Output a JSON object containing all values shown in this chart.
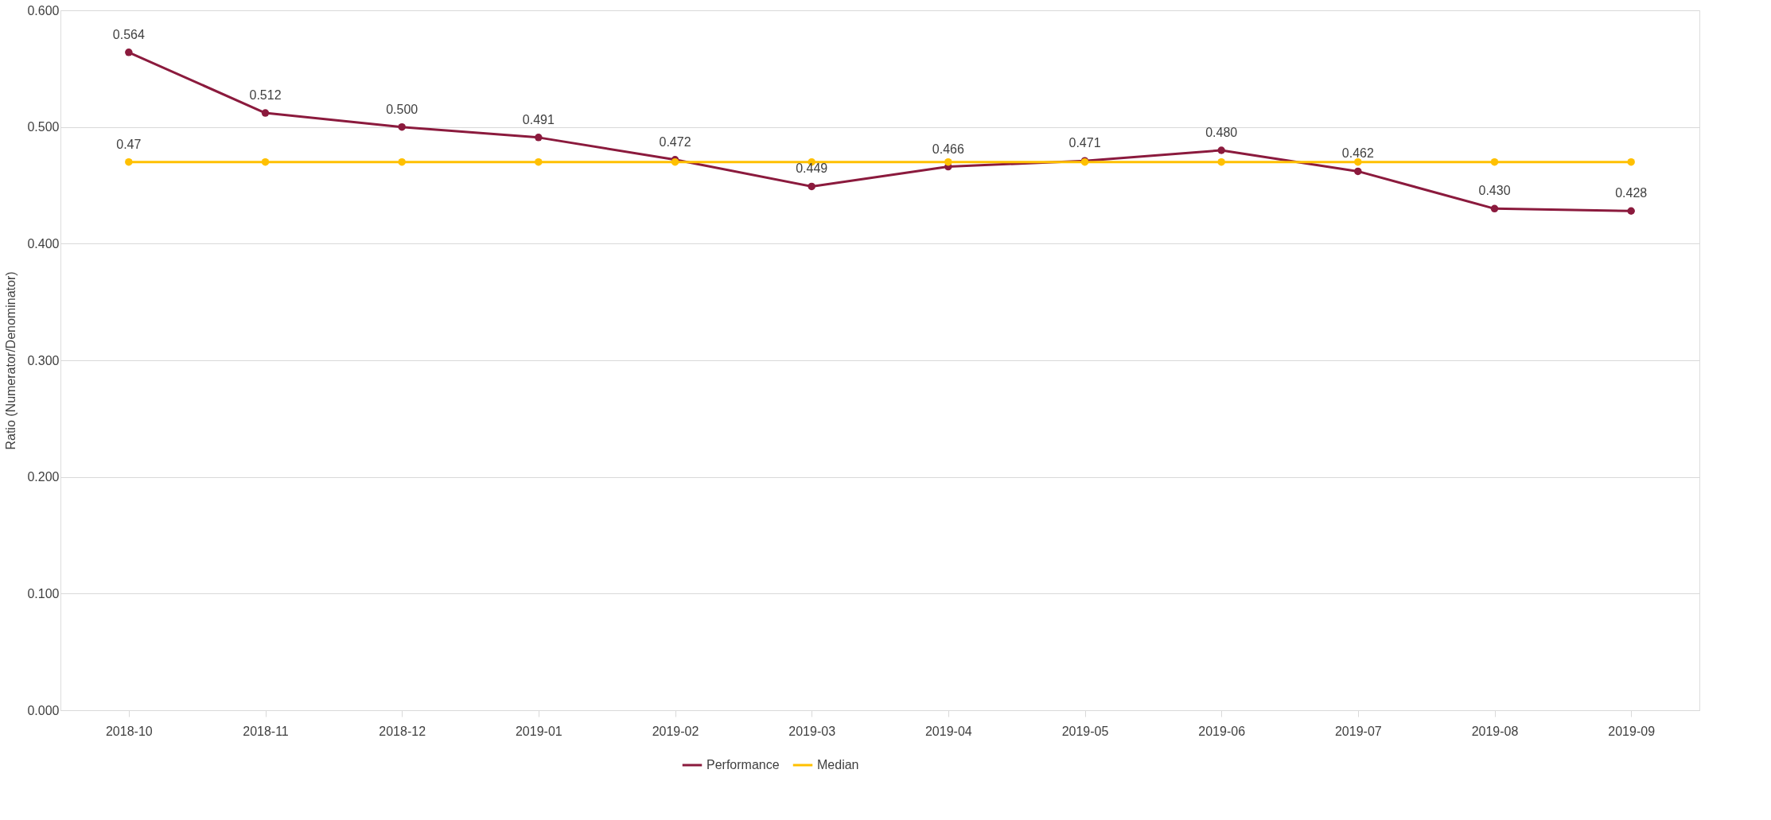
{
  "chart_data": {
    "type": "line",
    "ylabel": "Ratio (Numerator/Denominator)",
    "categories": [
      "2018-10",
      "2018-11",
      "2018-12",
      "2019-01",
      "2019-02",
      "2019-03",
      "2019-04",
      "2019-05",
      "2019-06",
      "2019-07",
      "2019-08",
      "2019-09"
    ],
    "series": [
      {
        "name": "Performance",
        "color": "#8b1a3d",
        "values": [
          0.564,
          0.512,
          0.5,
          0.491,
          0.472,
          0.449,
          0.466,
          0.471,
          0.48,
          0.462,
          0.43,
          0.428
        ],
        "value_labels": [
          "0.564",
          "0.512",
          "0.500",
          "0.491",
          "0.472",
          "0.449",
          "0.466",
          "0.471",
          "0.480",
          "0.462",
          "0.430",
          "0.428"
        ]
      },
      {
        "name": "Median",
        "color": "#ffc000",
        "values": [
          0.47,
          0.47,
          0.47,
          0.47,
          0.47,
          0.47,
          0.47,
          0.47,
          0.47,
          0.47,
          0.47,
          0.47
        ],
        "value_labels": [
          "0.47",
          null,
          null,
          null,
          null,
          null,
          null,
          null,
          null,
          null,
          null,
          null
        ]
      }
    ],
    "ylim": [
      0,
      0.6
    ],
    "yticks": [
      {
        "value": 0,
        "label": "0.000"
      },
      {
        "value": 0.1,
        "label": "0.100"
      },
      {
        "value": 0.2,
        "label": "0.200"
      },
      {
        "value": 0.3,
        "label": "0.300"
      },
      {
        "value": 0.4,
        "label": "0.400"
      },
      {
        "value": 0.5,
        "label": "0.500"
      },
      {
        "value": 0.6,
        "label": "0.600"
      }
    ],
    "grid": "y",
    "legend": "bottom",
    "marker": "circle",
    "line_style": "solid"
  }
}
